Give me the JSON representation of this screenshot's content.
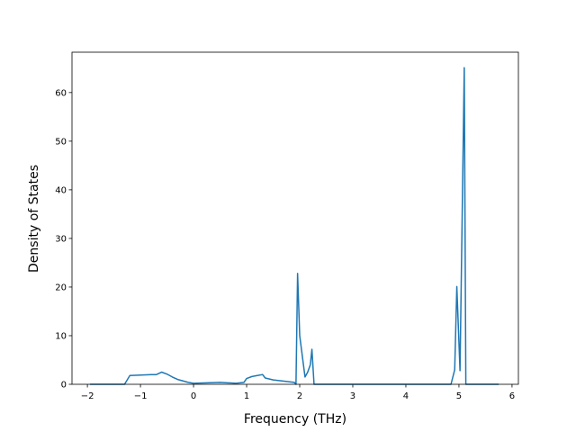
{
  "chart_data": {
    "type": "line",
    "xlabel": "Frequency (THz)",
    "ylabel": "Density of States",
    "x": [
      -1.95,
      -1.3,
      -1.2,
      -0.8,
      -0.7,
      -0.6,
      -0.5,
      -0.4,
      -0.3,
      -0.1,
      0,
      0.5,
      0.8,
      0.95,
      1.0,
      1.1,
      1.2,
      1.3,
      1.35,
      1.5,
      1.9,
      1.93,
      1.96,
      2.0,
      2.1,
      2.15,
      2.2,
      2.23,
      2.27,
      4.85,
      4.92,
      4.96,
      5.02,
      5.1,
      5.13,
      5.75
    ],
    "values": [
      0,
      0,
      1.8,
      2.0,
      2.0,
      2.5,
      2.1,
      1.5,
      1.0,
      0.4,
      0.2,
      0.4,
      0.2,
      0.4,
      1.2,
      1.6,
      1.8,
      2.0,
      1.3,
      0.9,
      0.4,
      0,
      22.8,
      10,
      1.5,
      2.5,
      4,
      7.2,
      0,
      0,
      3,
      20.1,
      2.8,
      65.1,
      0,
      0
    ],
    "color": "#1f77b4",
    "xlim": [
      -2.29,
      6.12
    ],
    "xticks": [
      {
        "value": -2,
        "label": "−2"
      },
      {
        "value": -1,
        "label": "−1"
      },
      0,
      1,
      2,
      3,
      4,
      5,
      6
    ],
    "ylim": [
      0,
      68.3
    ],
    "yticks": [
      0,
      10,
      20,
      30,
      40,
      50,
      60
    ]
  }
}
